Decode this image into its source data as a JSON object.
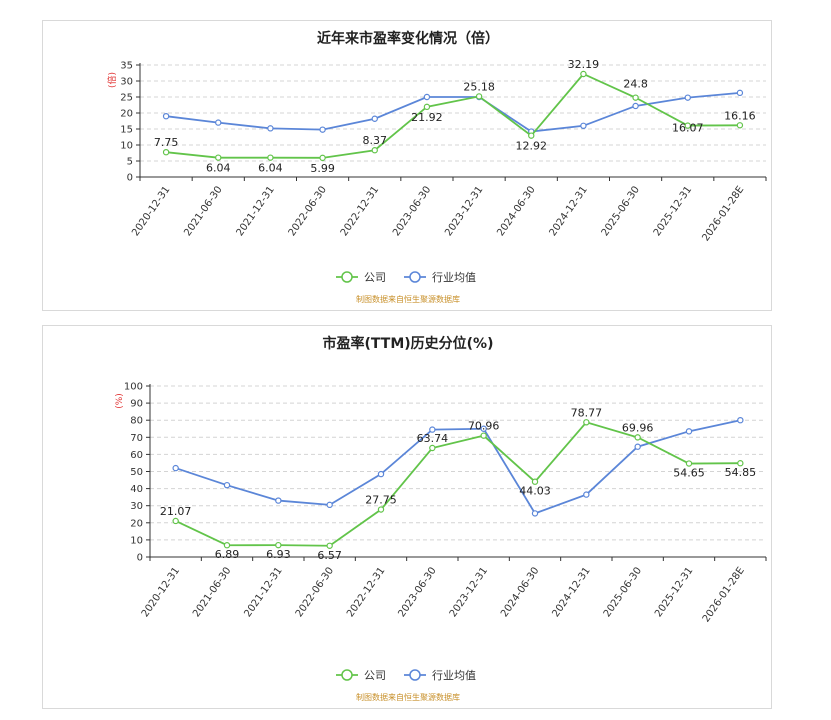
{
  "colors": {
    "company": "#62c44a",
    "industry": "#5b86d8",
    "grid": "#d4d4d4",
    "axis": "#333333",
    "unit": "#e03030",
    "source": "#c8902a"
  },
  "legend": {
    "company": "公司",
    "industry": "行业均值"
  },
  "source": "制图数据来自恒生聚源数据库",
  "chart_data": [
    {
      "type": "line",
      "title": "近年来市盈率变化情况（倍）",
      "ylabel": "(倍)",
      "ylim": [
        0,
        35
      ],
      "yticks": [
        0,
        5,
        10,
        15,
        20,
        25,
        30,
        35
      ],
      "grid": true,
      "legend_position": "bottom",
      "categories": [
        "2020-12-31",
        "2021-06-30",
        "2021-12-31",
        "2022-06-30",
        "2022-12-31",
        "2023-06-30",
        "2023-12-31",
        "2024-06-30",
        "2024-12-31",
        "2025-06-30",
        "2025-12-31",
        "2026-01-28E"
      ],
      "series": [
        {
          "name": "公司",
          "values": [
            7.75,
            6.04,
            6.04,
            5.99,
            8.37,
            21.92,
            25.18,
            12.92,
            32.19,
            24.8,
            16.07,
            16.16
          ],
          "labels": [
            "7.75",
            "6.04",
            "6.04",
            "5.99",
            "8.37",
            "21.92",
            "25.18",
            "12.92",
            "32.19",
            "24.8",
            "16.07",
            "16.16"
          ]
        },
        {
          "name": "行业均值",
          "values": [
            19,
            17,
            15.2,
            14.8,
            18.2,
            25,
            25,
            14.2,
            16,
            22.2,
            24.8,
            26.3
          ]
        }
      ]
    },
    {
      "type": "line",
      "title": "市盈率(TTM)历史分位(%)",
      "ylabel": "(%)",
      "ylim": [
        0,
        100
      ],
      "yticks": [
        0,
        10,
        20,
        30,
        40,
        50,
        60,
        70,
        80,
        90,
        100
      ],
      "grid": true,
      "legend_position": "bottom",
      "categories": [
        "2020-12-31",
        "2021-06-30",
        "2021-12-31",
        "2022-06-30",
        "2022-12-31",
        "2023-06-30",
        "2023-12-31",
        "2024-06-30",
        "2024-12-31",
        "2025-06-30",
        "2025-12-31",
        "2026-01-28E"
      ],
      "series": [
        {
          "name": "公司",
          "values": [
            21.07,
            6.89,
            6.93,
            6.57,
            27.75,
            63.74,
            70.96,
            44.03,
            78.77,
            69.96,
            54.65,
            54.85
          ],
          "labels": [
            "21.07",
            "6.89",
            "6.93",
            "6.57",
            "27.75",
            "63.74",
            "70.96",
            "44.03",
            "78.77",
            "69.96",
            "54.65",
            "54.85"
          ]
        },
        {
          "name": "行业均值",
          "values": [
            52,
            42,
            33,
            30.5,
            48.5,
            74.5,
            75,
            25.5,
            36.5,
            64.5,
            73.5,
            80
          ]
        }
      ]
    }
  ]
}
